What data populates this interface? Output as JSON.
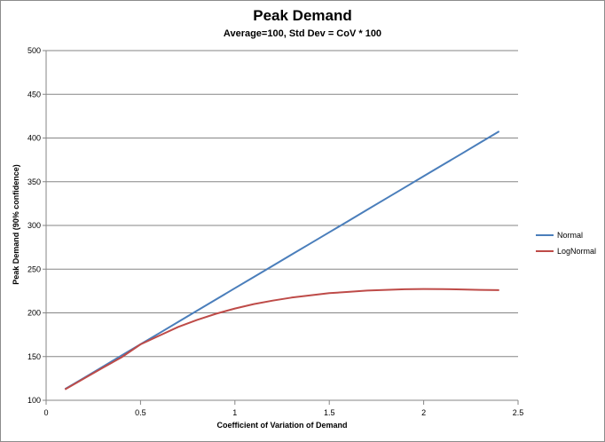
{
  "chart_data": {
    "type": "line",
    "title": "Peak Demand",
    "subtitle": "Average=100, Std Dev = CoV * 100",
    "xlabel": "Coefficient of Variation  of Demand",
    "ylabel": "Peak Demand (90% confidence)",
    "xlim": [
      0,
      2.5
    ],
    "ylim": [
      100,
      500
    ],
    "xticks": [
      "0",
      "0.5",
      "1",
      "1.5",
      "2",
      "2.5"
    ],
    "yticks": [
      "100",
      "150",
      "200",
      "250",
      "300",
      "350",
      "400",
      "450",
      "500"
    ],
    "grid": "horizontal",
    "legend_position": "right",
    "series": [
      {
        "name": "Normal",
        "color": "#4a7ebb",
        "x": [
          0.1,
          0.2,
          0.3,
          0.4,
          0.5,
          0.6,
          0.7,
          0.8,
          0.9,
          1.0,
          1.1,
          1.2,
          1.3,
          1.4,
          1.5,
          1.6,
          1.7,
          1.8,
          1.9,
          2.0,
          2.1,
          2.2,
          2.3,
          2.4
        ],
        "values": [
          112.8,
          125.6,
          138.4,
          151.3,
          164.1,
          176.9,
          189.7,
          202.5,
          215.3,
          228.2,
          241.0,
          253.8,
          266.6,
          279.4,
          292.2,
          305.0,
          317.9,
          330.7,
          343.5,
          356.3,
          369.1,
          381.9,
          394.8,
          407.6
        ]
      },
      {
        "name": "LogNormal",
        "color": "#be4b48",
        "x": [
          0.1,
          0.2,
          0.3,
          0.4,
          0.5,
          0.6,
          0.7,
          0.8,
          0.9,
          1.0,
          1.1,
          1.2,
          1.3,
          1.4,
          1.5,
          1.6,
          1.7,
          1.8,
          1.9,
          2.0,
          2.1,
          2.2,
          2.3,
          2.4
        ],
        "values": [
          112.5,
          124.9,
          137.2,
          149.2,
          164.0,
          174.0,
          184.0,
          192.0,
          199.0,
          205.0,
          210.0,
          214.0,
          217.5,
          220.0,
          222.5,
          224.0,
          225.5,
          226.3,
          227.0,
          227.3,
          227.2,
          226.8,
          226.3,
          226.0
        ]
      }
    ]
  }
}
